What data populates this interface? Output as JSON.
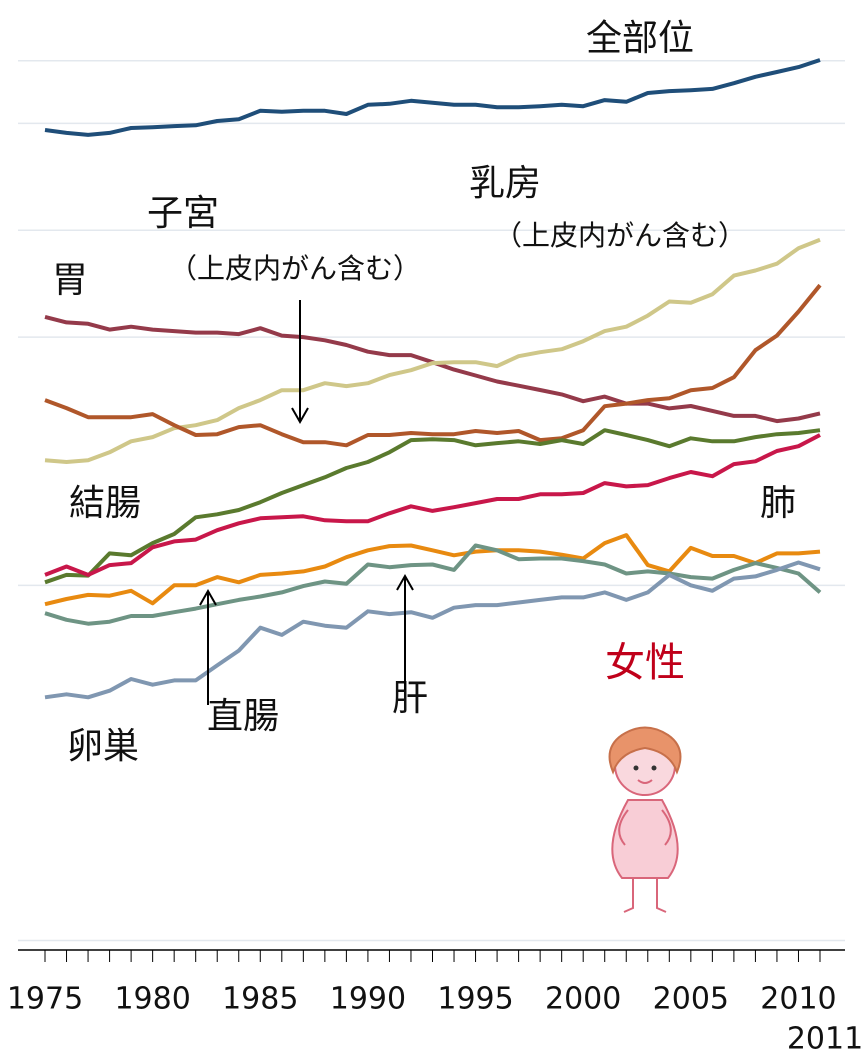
{
  "chart_data": {
    "type": "line",
    "title": "女性",
    "x": [
      1975,
      1976,
      1977,
      1978,
      1979,
      1980,
      1981,
      1982,
      1983,
      1984,
      1985,
      1986,
      1987,
      1988,
      1989,
      1990,
      1991,
      1992,
      1993,
      1994,
      1995,
      1996,
      1997,
      1998,
      1999,
      2000,
      2001,
      2002,
      2003,
      2004,
      2005,
      2006,
      2007,
      2008,
      2009,
      2010,
      2011
    ],
    "xlim": [
      1975,
      2011
    ],
    "xticks": [
      1975,
      1980,
      1985,
      1990,
      1995,
      2000,
      2005,
      2010,
      2011
    ],
    "ylim": [
      1.88,
      890
    ],
    "log_scale": true,
    "grid": true,
    "yticks": [
      2,
      20,
      100,
      200,
      400,
      600
    ],
    "annotations": [
      "（上皮内がん含む）",
      "（上皮内がん含む）"
    ],
    "series": [
      {
        "name": "全部位",
        "color": "#1f4e79",
        "values": [
          383,
          376,
          371,
          376,
          388,
          390,
          393,
          395,
          406,
          411,
          434,
          431,
          434,
          434,
          425,
          451,
          454,
          463,
          457,
          451,
          451,
          444,
          444,
          447,
          451,
          447,
          465,
          460,
          487,
          493,
          496,
          500,
          519,
          541,
          558,
          576,
          603
        ]
      },
      {
        "name": "胃",
        "color": "#943a4a",
        "values": [
          114,
          110,
          109,
          105,
          107,
          105,
          104,
          103,
          103,
          102,
          106,
          101,
          100,
          98,
          95,
          91,
          89,
          89,
          85,
          81,
          78,
          75,
          73,
          71,
          69,
          66,
          68,
          65,
          65,
          63,
          64,
          62,
          60,
          60,
          58,
          59,
          61
        ]
      },
      {
        "name": "乳房",
        "color": "#cfc789",
        "values": [
          45.0,
          44.5,
          45.0,
          47.4,
          50.9,
          52.3,
          55.4,
          56.5,
          58.4,
          63.1,
          66.5,
          70.9,
          70.9,
          74.2,
          72.8,
          74.2,
          78.2,
          80.7,
          84.5,
          85.0,
          85.0,
          82.9,
          88.4,
          90.7,
          92.5,
          97.4,
          104,
          107,
          115,
          126,
          125,
          132,
          149,
          154,
          161,
          178,
          188
        ]
      },
      {
        "name": "子宮",
        "color": "#b0572a",
        "values": [
          66.5,
          63.1,
          59.5,
          59.5,
          59.5,
          60.7,
          56.5,
          53.0,
          53.3,
          55.8,
          56.5,
          53.3,
          50.6,
          50.6,
          49.6,
          53.0,
          53.0,
          53.7,
          53.3,
          53.3,
          54.4,
          53.7,
          54.4,
          51.3,
          51.9,
          54.7,
          63.9,
          65.0,
          66.5,
          67.3,
          70.9,
          71.9,
          77.1,
          91.9,
          101,
          118,
          140
        ]
      },
      {
        "name": "結腸",
        "color": "#5a7a2e",
        "values": [
          20.4,
          21.4,
          21.3,
          24.6,
          24.3,
          26.3,
          27.9,
          31.1,
          31.7,
          32.6,
          34.3,
          36.4,
          38.3,
          40.3,
          42.8,
          44.5,
          47.4,
          51.3,
          51.6,
          51.3,
          49.6,
          50.3,
          50.9,
          50.0,
          51.3,
          50.0,
          54.7,
          53.0,
          51.3,
          49.3,
          51.9,
          50.9,
          50.9,
          52.3,
          53.3,
          53.7,
          54.7
        ]
      },
      {
        "name": "肺",
        "color": "#c8174a",
        "values": [
          21.4,
          22.6,
          21.4,
          22.8,
          23.1,
          25.6,
          26.6,
          26.9,
          28.6,
          29.9,
          30.9,
          31.1,
          31.3,
          30.5,
          30.3,
          30.3,
          31.9,
          33.4,
          32.4,
          33.2,
          34.1,
          35.0,
          35.0,
          36.1,
          36.1,
          36.4,
          38.8,
          38.0,
          38.3,
          40.1,
          41.7,
          40.6,
          43.9,
          44.7,
          47.8,
          49.3,
          53.0
        ]
      },
      {
        "name": "直腸",
        "color": "#e88a10",
        "values": [
          17.7,
          18.3,
          18.8,
          18.7,
          19.3,
          17.8,
          20.0,
          20.0,
          21.1,
          20.4,
          21.4,
          21.6,
          21.9,
          22.6,
          24.0,
          25.1,
          25.8,
          25.9,
          25.1,
          24.3,
          24.9,
          25.1,
          25.1,
          24.9,
          24.4,
          23.8,
          26.3,
          27.7,
          22.8,
          21.9,
          25.5,
          24.2,
          24.2,
          23.1,
          24.6,
          24.6,
          24.9
        ]
      },
      {
        "name": "肝",
        "color": "#6e9484",
        "values": [
          16.7,
          16.0,
          15.6,
          15.8,
          16.4,
          16.4,
          16.8,
          17.2,
          17.7,
          18.2,
          18.6,
          19.1,
          19.9,
          20.5,
          20.2,
          22.9,
          22.5,
          22.8,
          22.9,
          22.1,
          25.9,
          25.1,
          23.7,
          23.8,
          23.8,
          23.4,
          22.9,
          21.6,
          21.9,
          21.6,
          21.1,
          20.9,
          22.1,
          23.1,
          22.4,
          21.6,
          19.1
        ]
      },
      {
        "name": "卵巣",
        "color": "#8097b1",
        "values": [
          9.68,
          9.87,
          9.68,
          10.1,
          10.9,
          10.5,
          10.8,
          10.8,
          11.9,
          13.1,
          15.2,
          14.5,
          15.8,
          15.4,
          15.2,
          16.9,
          16.6,
          16.8,
          16.2,
          17.3,
          17.6,
          17.6,
          17.9,
          18.2,
          18.5,
          18.5,
          19.1,
          18.2,
          19.1,
          21.4,
          20.0,
          19.3,
          20.9,
          21.2,
          22.1,
          23.2,
          22.2
        ]
      }
    ]
  }
}
